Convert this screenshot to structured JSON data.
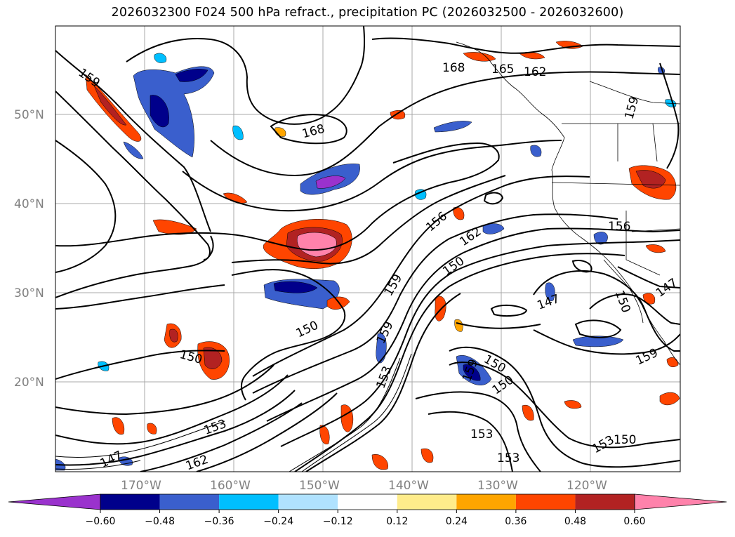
{
  "title": "2026032300 F024 500 hPa refract., precipitation PC (2026032500 - 2026032600)",
  "latitude_labels": [
    "50°N",
    "40°N",
    "30°N",
    "20°N"
  ],
  "longitude_labels": [
    "170°W",
    "160°W",
    "150°W",
    "140°W",
    "130°W",
    "120°W"
  ],
  "contour_labels": [
    "159",
    "168",
    "168",
    "165",
    "162",
    "159",
    "156",
    "156",
    "162",
    "150",
    "159",
    "150",
    "150",
    "159",
    "153",
    "153",
    "147",
    "162",
    "150",
    "150",
    "153",
    "153",
    "147",
    "150",
    "147",
    "159",
    "153"
  ],
  "colorbar": {
    "ticks": [
      "−0.60",
      "−0.48",
      "−0.36",
      "−0.24",
      "−0.12",
      "0.12",
      "0.24",
      "0.36",
      "0.48",
      "0.60"
    ],
    "colors": [
      "#9a32cd",
      "#00008b",
      "#3a5fcd",
      "#00bfff",
      "#b0e2ff",
      "#ffffff",
      "#ffec8b",
      "#ffa500",
      "#ff4500",
      "#b22222",
      "#ff82ab"
    ]
  }
}
